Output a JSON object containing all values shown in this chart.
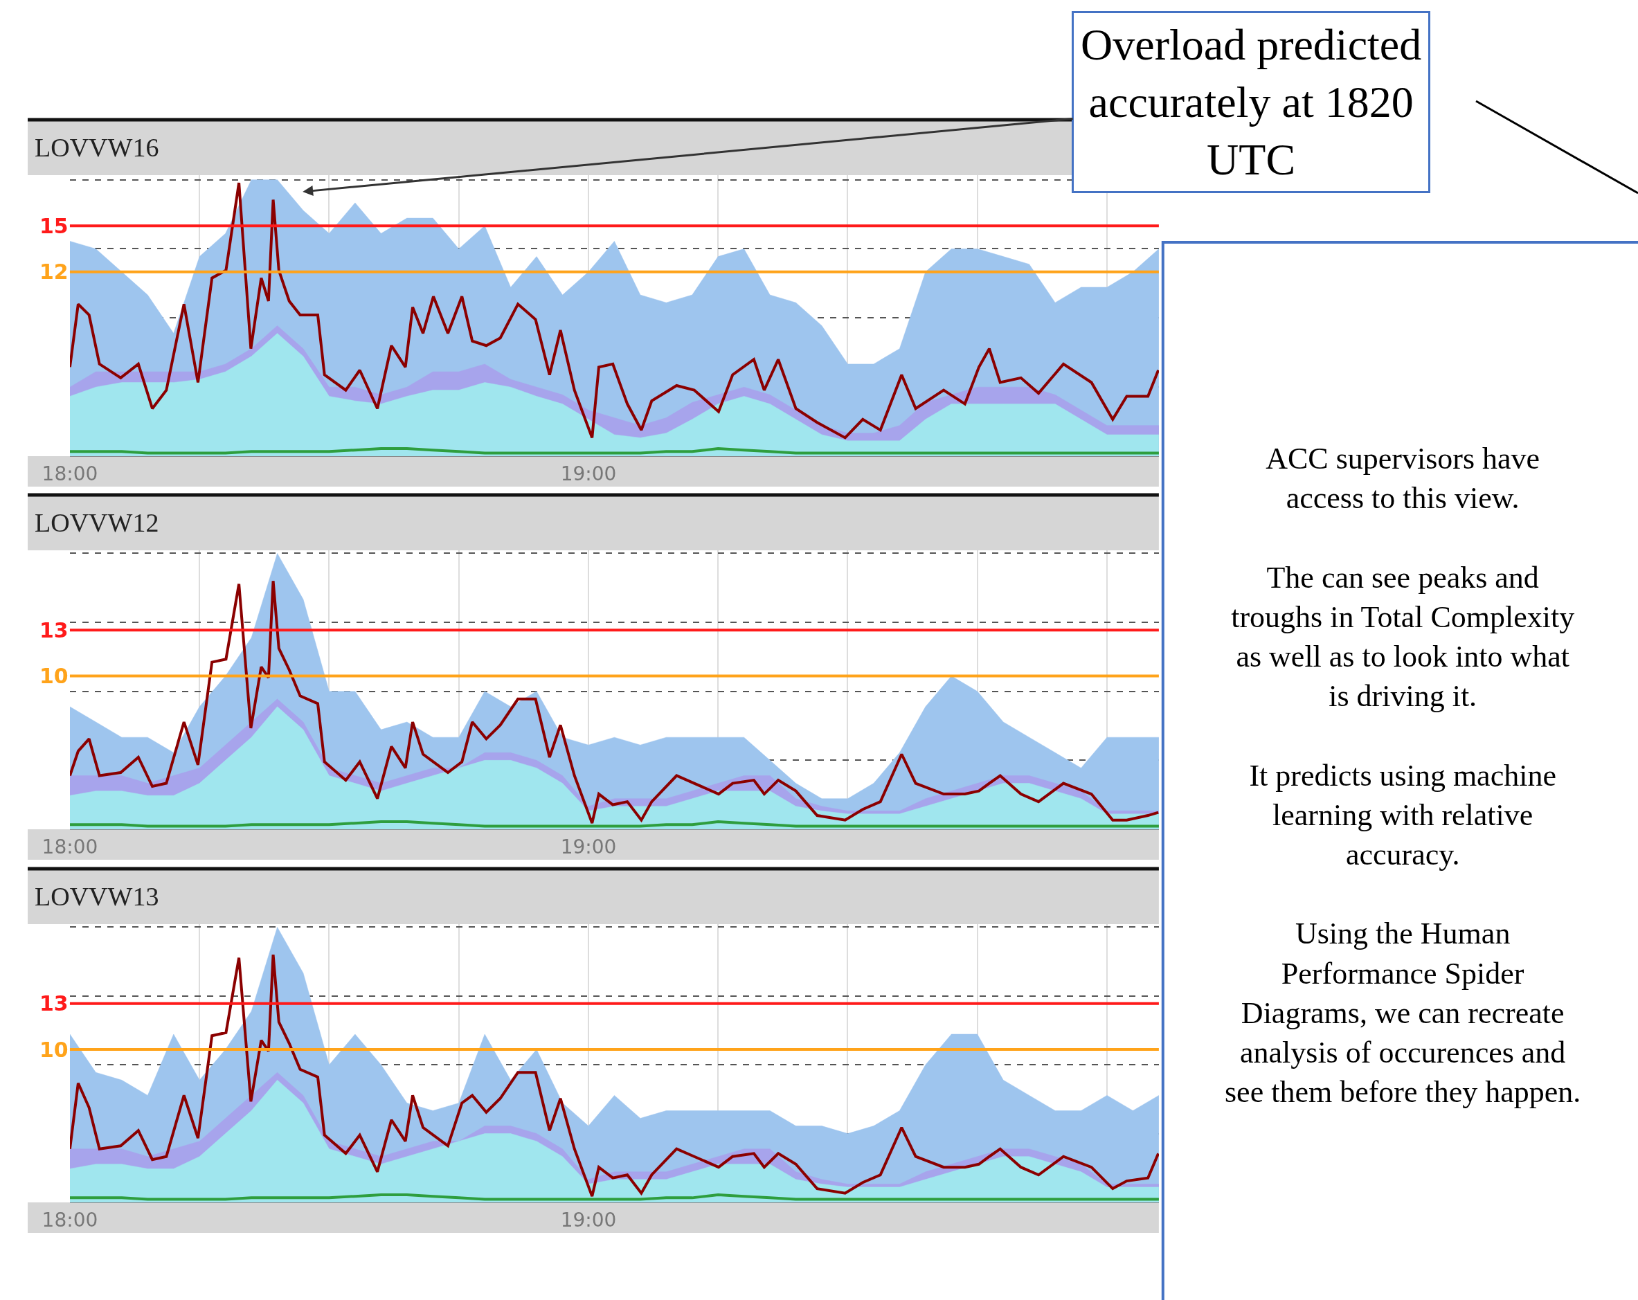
{
  "chart_data": [
    {
      "type": "area",
      "title": "LOVVW16",
      "x": [
        18,
        18.05,
        18.1,
        18.15,
        18.2,
        18.25,
        18.3,
        18.35,
        18.4,
        18.45,
        18.5,
        18.55,
        18.6,
        18.65,
        18.7,
        18.75,
        18.8,
        18.85,
        18.9,
        18.95,
        19,
        19.05,
        19.1,
        19.15,
        19.2,
        19.25,
        19.3,
        19.35,
        19.4,
        19.45,
        19.5,
        19.55,
        19.6,
        19.65,
        19.7,
        19.75,
        19.8,
        19.85,
        19.9,
        19.95,
        20,
        20.05,
        20.1
      ],
      "xlim": [
        18,
        20.1
      ],
      "xticks": [
        {
          "value": 18,
          "label": "18:00"
        },
        {
          "value": 18.25,
          "label": null
        },
        {
          "value": 18.5,
          "label": null
        },
        {
          "value": 18.75,
          "label": null
        },
        {
          "value": 19,
          "label": "19:00"
        },
        {
          "value": 19.25,
          "label": null
        },
        {
          "value": 19.5,
          "label": null
        },
        {
          "value": 19.75,
          "label": null
        },
        {
          "value": 20,
          "label": null
        }
      ],
      "ylim": [
        0,
        18.3
      ],
      "yticks": [
        {
          "value": 0,
          "label": null
        },
        {
          "value": 4.5,
          "label": null
        },
        {
          "value": 9,
          "label": null
        },
        {
          "value": 13.5,
          "label": null
        },
        {
          "value": 18,
          "label": null
        }
      ],
      "grid": true,
      "tick_labels": "x",
      "ref_lines": [
        {
          "axis": "y",
          "value": 15,
          "label": "15",
          "color": "#ff1a1a"
        },
        {
          "axis": "y",
          "value": 12,
          "label": "12",
          "color": "#ffa31a"
        }
      ],
      "annotations": [
        "Overload predicted\naccurately at 1820\nUTC"
      ],
      "series": [
        {
          "type": "area",
          "color": "#9ec5ee",
          "values": [
            14,
            13.5,
            12,
            10.5,
            8,
            13,
            14.5,
            18,
            18,
            16,
            14.5,
            16.5,
            14.5,
            15.5,
            15.5,
            13.5,
            15,
            11,
            13,
            10.5,
            12,
            14,
            10.5,
            10,
            10.5,
            13,
            13.5,
            10.5,
            10,
            8.5,
            6,
            6,
            7,
            12,
            13.5,
            13.5,
            13,
            12.5,
            10,
            11,
            11,
            12,
            13.5
          ]
        },
        {
          "type": "area",
          "color": "#a7a4ec",
          "values": [
            4.5,
            5.5,
            5.5,
            5.5,
            5.5,
            5.5,
            6,
            7,
            8.5,
            7,
            4.5,
            4.5,
            4,
            4.5,
            5.5,
            5.5,
            6,
            5,
            4.5,
            4,
            3,
            2.5,
            2,
            2.5,
            3.5,
            4,
            4.5,
            4,
            3,
            2,
            1.5,
            1.5,
            2,
            3.5,
            4,
            4.5,
            4.5,
            4.5,
            4,
            3,
            2,
            2,
            2
          ]
        },
        {
          "type": "area",
          "color": "#a0e6ee",
          "values": [
            3.9,
            4.5,
            4.8,
            4.8,
            4.8,
            5,
            5.5,
            6.5,
            8,
            6.5,
            3.9,
            3.6,
            3.4,
            3.9,
            4.3,
            4.3,
            4.8,
            4.5,
            3.9,
            3.4,
            2.4,
            1.4,
            1.2,
            1.5,
            2.4,
            3.4,
            3.9,
            3.4,
            2.4,
            1.4,
            1.0,
            1.0,
            1.0,
            2.4,
            3.4,
            3.4,
            3.4,
            3.4,
            3.4,
            2.4,
            1.4,
            1.4,
            1.4
          ]
        },
        {
          "type": "line",
          "color": "#2e9e3e",
          "values": [
            0.3,
            0.3,
            0.3,
            0.2,
            0.2,
            0.2,
            0.2,
            0.3,
            0.3,
            0.3,
            0.3,
            0.4,
            0.5,
            0.5,
            0.4,
            0.3,
            0.2,
            0.2,
            0.2,
            0.2,
            0.2,
            0.2,
            0.2,
            0.3,
            0.3,
            0.5,
            0.4,
            0.3,
            0.2,
            0.2,
            0.2,
            0.2,
            0.2,
            0.2,
            0.2,
            0.2,
            0.2,
            0.2,
            0.2,
            0.2,
            0.2,
            0.2,
            0.2
          ]
        },
        {
          "type": "line",
          "color": "#8b0000",
          "x": [
            18.0,
            18.016,
            18.037,
            18.057,
            18.098,
            18.132,
            18.159,
            18.186,
            18.22,
            18.247,
            18.274,
            18.301,
            18.326,
            18.349,
            18.369,
            18.383,
            18.392,
            18.403,
            18.423,
            18.444,
            18.478,
            18.491,
            18.532,
            18.559,
            18.593,
            18.62,
            18.647,
            18.661,
            18.681,
            18.701,
            18.729,
            18.756,
            18.776,
            18.803,
            18.83,
            18.864,
            18.898,
            18.925,
            18.946,
            18.973,
            19.007,
            19.02,
            19.047,
            19.075,
            19.102,
            19.122,
            19.17,
            19.204,
            19.251,
            19.278,
            19.319,
            19.339,
            19.366,
            19.4,
            19.441,
            19.495,
            19.529,
            19.563,
            19.604,
            19.631,
            19.685,
            19.726,
            19.753,
            19.773,
            19.794,
            19.834,
            19.868,
            19.916,
            19.97,
            20.011,
            20.038,
            20.079,
            20.099
          ],
          "values": [
            5.8,
            9.9,
            9.2,
            6.0,
            5.1,
            6.0,
            3.1,
            4.3,
            9.9,
            4.8,
            11.6,
            12.1,
            17.8,
            7.0,
            11.6,
            10.1,
            16.7,
            12.1,
            10.1,
            9.2,
            9.2,
            5.3,
            4.3,
            5.6,
            3.1,
            7.2,
            5.8,
            9.7,
            8.0,
            10.4,
            8.0,
            10.4,
            7.5,
            7.2,
            7.7,
            9.9,
            8.9,
            5.3,
            8.2,
            4.3,
            1.2,
            5.8,
            6.0,
            3.4,
            1.7,
            3.6,
            4.6,
            4.3,
            2.9,
            5.3,
            6.3,
            4.3,
            6.3,
            3.1,
            2.2,
            1.2,
            2.4,
            1.7,
            5.3,
            3.1,
            4.3,
            3.4,
            5.8,
            7.0,
            4.8,
            5.1,
            4.1,
            6.0,
            4.8,
            2.4,
            3.9,
            3.9,
            5.6
          ]
        }
      ]
    },
    {
      "type": "area",
      "title": "LOVVW12",
      "x": [
        18,
        18.05,
        18.1,
        18.15,
        18.2,
        18.25,
        18.3,
        18.35,
        18.4,
        18.45,
        18.5,
        18.55,
        18.6,
        18.65,
        18.7,
        18.75,
        18.8,
        18.85,
        18.9,
        18.95,
        19,
        19.05,
        19.1,
        19.15,
        19.2,
        19.25,
        19.3,
        19.35,
        19.4,
        19.45,
        19.5,
        19.55,
        19.6,
        19.65,
        19.7,
        19.75,
        19.8,
        19.85,
        19.9,
        19.95,
        20,
        20.05,
        20.1
      ],
      "xlim": [
        18,
        20.1
      ],
      "xticks": [
        {
          "value": 18,
          "label": "18:00"
        },
        {
          "value": 18.25,
          "label": null
        },
        {
          "value": 18.5,
          "label": null
        },
        {
          "value": 18.75,
          "label": null
        },
        {
          "value": 19,
          "label": "19:00"
        },
        {
          "value": 19.25,
          "label": null
        },
        {
          "value": 19.5,
          "label": null
        },
        {
          "value": 19.75,
          "label": null
        },
        {
          "value": 20,
          "label": null
        }
      ],
      "ylim": [
        0,
        18.2
      ],
      "yticks": [
        {
          "value": 0,
          "label": null
        },
        {
          "value": 4.5,
          "label": null
        },
        {
          "value": 9,
          "label": null
        },
        {
          "value": 13.5,
          "label": null
        },
        {
          "value": 18,
          "label": null
        }
      ],
      "grid": true,
      "tick_labels": "x",
      "ref_lines": [
        {
          "axis": "y",
          "value": 13,
          "label": "13",
          "color": "#ff1a1a"
        },
        {
          "axis": "y",
          "value": 10,
          "label": "10",
          "color": "#ffa31a"
        }
      ],
      "series": [
        {
          "type": "area",
          "color": "#9ec5ee",
          "values": [
            8,
            7,
            6,
            6,
            5,
            8,
            10,
            12.5,
            18,
            15,
            9,
            9,
            6.5,
            7,
            6,
            6,
            9,
            8,
            9,
            6,
            5.5,
            6,
            5.5,
            6,
            6,
            6,
            6,
            4.5,
            3,
            2,
            2,
            3,
            5,
            8,
            10,
            9,
            7,
            6,
            5,
            4,
            6,
            6,
            6
          ]
        },
        {
          "type": "area",
          "color": "#a7a4ec",
          "values": [
            3.5,
            3.5,
            3.5,
            3,
            3.5,
            4,
            5.5,
            7,
            8.5,
            7,
            4,
            3.5,
            3,
            3.5,
            4,
            4,
            5,
            5,
            4.5,
            3.5,
            1.5,
            2,
            2,
            2,
            2.5,
            3,
            3.5,
            3.5,
            2,
            1.5,
            1.2,
            1.2,
            1.2,
            2,
            2.5,
            3,
            3.5,
            3.5,
            3,
            2.5,
            1.2,
            1.2,
            1.2
          ]
        },
        {
          "type": "area",
          "color": "#a0e6ee",
          "values": [
            2.2,
            2.5,
            2.5,
            2.2,
            2.2,
            3,
            4.5,
            6,
            8,
            6.5,
            3.5,
            3,
            2.5,
            3,
            3.5,
            4,
            4.5,
            4.5,
            4,
            3,
            1.2,
            1.5,
            1.5,
            1.5,
            2,
            2.5,
            2.5,
            2.5,
            1.5,
            1.2,
            1,
            1,
            1,
            1.5,
            2,
            2.5,
            3,
            3,
            2.5,
            2,
            1,
            1,
            1
          ]
        },
        {
          "type": "line",
          "color": "#2e9e3e",
          "values": [
            0.3,
            0.3,
            0.3,
            0.2,
            0.2,
            0.2,
            0.2,
            0.3,
            0.3,
            0.3,
            0.3,
            0.4,
            0.5,
            0.5,
            0.4,
            0.3,
            0.2,
            0.2,
            0.2,
            0.2,
            0.2,
            0.2,
            0.2,
            0.3,
            0.3,
            0.5,
            0.4,
            0.3,
            0.2,
            0.2,
            0.2,
            0.2,
            0.2,
            0.2,
            0.2,
            0.2,
            0.2,
            0.2,
            0.2,
            0.2,
            0.2,
            0.2,
            0.2
          ]
        },
        {
          "type": "line",
          "color": "#8b0000",
          "x": [
            18.0,
            18.016,
            18.037,
            18.057,
            18.098,
            18.132,
            18.159,
            18.186,
            18.22,
            18.247,
            18.274,
            18.301,
            18.326,
            18.349,
            18.369,
            18.383,
            18.392,
            18.403,
            18.423,
            18.444,
            18.478,
            18.491,
            18.532,
            18.559,
            18.593,
            18.62,
            18.647,
            18.661,
            18.681,
            18.701,
            18.729,
            18.756,
            18.776,
            18.803,
            18.83,
            18.864,
            18.898,
            18.925,
            18.946,
            18.973,
            19.007,
            19.02,
            19.047,
            19.075,
            19.102,
            19.122,
            19.17,
            19.204,
            19.251,
            19.278,
            19.319,
            19.339,
            19.366,
            19.4,
            19.441,
            19.495,
            19.529,
            19.563,
            19.604,
            19.631,
            19.685,
            19.726,
            19.753,
            19.773,
            19.794,
            19.834,
            19.868,
            19.916,
            19.97,
            20.011,
            20.038,
            20.079,
            20.099
          ],
          "values": [
            3.5,
            5.1,
            5.9,
            3.5,
            3.7,
            4.7,
            2.8,
            3.0,
            7.0,
            4.2,
            10.9,
            11.1,
            16.0,
            6.6,
            10.6,
            9.9,
            16.2,
            11.8,
            10.4,
            8.7,
            8.2,
            4.4,
            3.2,
            4.4,
            2.0,
            5.4,
            4.0,
            7.0,
            4.9,
            4.4,
            3.7,
            4.4,
            7.0,
            5.9,
            6.8,
            8.5,
            8.5,
            4.7,
            6.8,
            3.5,
            0.4,
            2.3,
            1.6,
            1.8,
            0.6,
            1.8,
            3.5,
            3.0,
            2.3,
            3.0,
            3.2,
            2.3,
            3.2,
            2.5,
            0.9,
            0.6,
            1.3,
            1.8,
            4.9,
            3.0,
            2.3,
            2.3,
            2.5,
            3.0,
            3.5,
            2.3,
            1.8,
            3.0,
            2.3,
            0.6,
            0.6,
            0.9,
            1.1
          ]
        }
      ]
    },
    {
      "type": "area",
      "title": "LOVVW13",
      "x": [
        18,
        18.05,
        18.1,
        18.15,
        18.2,
        18.25,
        18.3,
        18.35,
        18.4,
        18.45,
        18.5,
        18.55,
        18.6,
        18.65,
        18.7,
        18.75,
        18.8,
        18.85,
        18.9,
        18.95,
        19,
        19.05,
        19.1,
        19.15,
        19.2,
        19.25,
        19.3,
        19.35,
        19.4,
        19.45,
        19.5,
        19.55,
        19.6,
        19.65,
        19.7,
        19.75,
        19.8,
        19.85,
        19.9,
        19.95,
        20,
        20.05,
        20.1
      ],
      "xlim": [
        18,
        20.1
      ],
      "xticks": [
        {
          "value": 18,
          "label": "18:00"
        },
        {
          "value": 18.25,
          "label": null
        },
        {
          "value": 18.5,
          "label": null
        },
        {
          "value": 18.75,
          "label": null
        },
        {
          "value": 19,
          "label": "19:00"
        },
        {
          "value": 19.25,
          "label": null
        },
        {
          "value": 19.5,
          "label": null
        },
        {
          "value": 19.75,
          "label": null
        },
        {
          "value": 20,
          "label": null
        }
      ],
      "ylim": [
        0,
        18.2
      ],
      "yticks": [
        {
          "value": 0,
          "label": null
        },
        {
          "value": 4.5,
          "label": null
        },
        {
          "value": 9,
          "label": null
        },
        {
          "value": 13.5,
          "label": null
        },
        {
          "value": 18,
          "label": null
        }
      ],
      "grid": true,
      "tick_labels": "x",
      "ref_lines": [
        {
          "axis": "y",
          "value": 13,
          "label": "13",
          "color": "#ff1a1a"
        },
        {
          "axis": "y",
          "value": 10,
          "label": "10",
          "color": "#ffa31a"
        }
      ],
      "series": [
        {
          "type": "area",
          "color": "#9ec5ee",
          "values": [
            11,
            8.5,
            8,
            7,
            11,
            8,
            10,
            12.5,
            18,
            15,
            9,
            11,
            9,
            6.5,
            6,
            6.5,
            11,
            8,
            10,
            6.5,
            5,
            7,
            5.5,
            6,
            6,
            6,
            6,
            6,
            5,
            5,
            4.5,
            5,
            6,
            9,
            11,
            11,
            8,
            7,
            6,
            6,
            7,
            6,
            7
          ]
        },
        {
          "type": "area",
          "color": "#a7a4ec",
          "values": [
            3.5,
            3.5,
            3.5,
            3,
            3.5,
            4,
            5.5,
            7,
            8.5,
            7,
            4,
            3.5,
            3,
            3.5,
            4,
            4,
            5,
            5,
            4.5,
            3.5,
            1.5,
            2,
            2,
            2,
            2.5,
            3,
            3.5,
            3.5,
            2,
            1.5,
            1.2,
            1.2,
            1.2,
            2,
            2.5,
            3,
            3.5,
            3.5,
            3,
            2.5,
            1.2,
            1.2,
            1.2
          ]
        },
        {
          "type": "area",
          "color": "#a0e6ee",
          "values": [
            2.2,
            2.5,
            2.5,
            2.2,
            2.2,
            3,
            4.5,
            6,
            8,
            6.5,
            3.5,
            3,
            2.5,
            3,
            3.5,
            4,
            4.5,
            4.5,
            4,
            3,
            1.2,
            1.5,
            1.5,
            1.5,
            2,
            2.5,
            2.5,
            2.5,
            1.5,
            1.2,
            1,
            1,
            1,
            1.5,
            2,
            2.5,
            3,
            3,
            2.5,
            2,
            1,
            1,
            1
          ]
        },
        {
          "type": "line",
          "color": "#2e9e3e",
          "values": [
            0.3,
            0.3,
            0.3,
            0.2,
            0.2,
            0.2,
            0.2,
            0.3,
            0.3,
            0.3,
            0.3,
            0.4,
            0.5,
            0.5,
            0.4,
            0.3,
            0.2,
            0.2,
            0.2,
            0.2,
            0.2,
            0.2,
            0.2,
            0.3,
            0.3,
            0.5,
            0.4,
            0.3,
            0.2,
            0.2,
            0.2,
            0.2,
            0.2,
            0.2,
            0.2,
            0.2,
            0.2,
            0.2,
            0.2,
            0.2,
            0.2,
            0.2,
            0.2
          ]
        },
        {
          "type": "line",
          "color": "#8b0000",
          "x": [
            18.0,
            18.016,
            18.037,
            18.057,
            18.098,
            18.132,
            18.159,
            18.186,
            18.22,
            18.247,
            18.274,
            18.301,
            18.326,
            18.349,
            18.369,
            18.383,
            18.392,
            18.403,
            18.423,
            18.444,
            18.478,
            18.491,
            18.532,
            18.559,
            18.593,
            18.62,
            18.647,
            18.661,
            18.681,
            18.701,
            18.729,
            18.756,
            18.776,
            18.803,
            18.83,
            18.864,
            18.898,
            18.925,
            18.946,
            18.973,
            19.007,
            19.02,
            19.047,
            19.075,
            19.102,
            19.122,
            19.17,
            19.204,
            19.251,
            19.278,
            19.319,
            19.339,
            19.366,
            19.4,
            19.441,
            19.495,
            19.529,
            19.563,
            19.604,
            19.631,
            19.685,
            19.726,
            19.753,
            19.773,
            19.794,
            19.834,
            19.868,
            19.916,
            19.97,
            20.011,
            20.038,
            20.079,
            20.099
          ],
          "values": [
            3.5,
            7.8,
            6.2,
            3.5,
            3.7,
            4.7,
            2.8,
            3.0,
            7.0,
            4.2,
            10.9,
            11.1,
            16.0,
            6.6,
            10.6,
            9.9,
            16.2,
            11.8,
            10.4,
            8.7,
            8.2,
            4.4,
            3.2,
            4.4,
            2.0,
            5.4,
            4.0,
            7.0,
            4.9,
            4.4,
            3.7,
            6.5,
            7.0,
            5.9,
            6.8,
            8.5,
            8.5,
            4.7,
            6.8,
            3.5,
            0.4,
            2.3,
            1.6,
            1.8,
            0.6,
            1.8,
            3.5,
            3.0,
            2.3,
            3.0,
            3.2,
            2.3,
            3.2,
            2.5,
            0.9,
            0.6,
            1.3,
            1.8,
            4.9,
            3.0,
            2.3,
            2.3,
            2.5,
            3.0,
            3.5,
            2.3,
            1.8,
            3.0,
            2.3,
            0.9,
            1.4,
            1.6,
            3.2
          ]
        }
      ]
    },
    {
      "type": "other",
      "annotations": [
        "ACC supervisors have\naccess to this view.",
        "The can see peaks and\ntroughs in Total Complexity\nas well as to look into what\nis driving it.",
        "It predicts using machine\nlearning with relative\naccuracy.",
        "Using the Human\nPerformance Spider\nDiagrams, we can recreate\nanalysis of occurences and\nsee them before they happen."
      ]
    }
  ]
}
